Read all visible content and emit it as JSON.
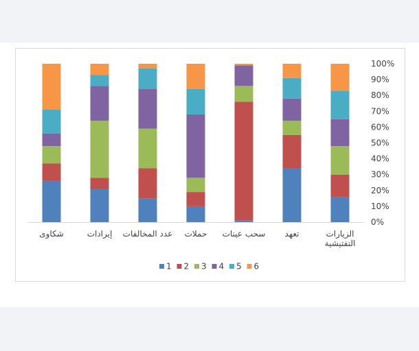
{
  "chart_data": {
    "type": "bar",
    "stacked": true,
    "percent_stacked": true,
    "categories": [
      "شكاوى",
      "إيرادات",
      "عدد المخالفات",
      "حملات",
      "سحب عينات",
      "تعهد",
      "الزيارات التفتيشية"
    ],
    "category_lines": [
      [
        "شكاوى"
      ],
      [
        "إيرادات"
      ],
      [
        "عدد المخالفات"
      ],
      [
        "حملات"
      ],
      [
        "سحب عينات"
      ],
      [
        "تعهد"
      ],
      [
        "الزيارات",
        "التفتيشية"
      ]
    ],
    "series": [
      {
        "name": "1",
        "color": "#4f81bd",
        "values": [
          26,
          21,
          15,
          10,
          1,
          34,
          16
        ]
      },
      {
        "name": "2",
        "color": "#c0504d",
        "values": [
          11,
          7,
          19,
          9,
          75,
          21,
          14
        ]
      },
      {
        "name": "3",
        "color": "#9bbb59",
        "values": [
          11,
          36,
          25,
          9,
          10,
          9,
          18
        ]
      },
      {
        "name": "4",
        "color": "#8064a2",
        "values": [
          8,
          22,
          25,
          40,
          13,
          14,
          17
        ]
      },
      {
        "name": "5",
        "color": "#4bacc6",
        "values": [
          15,
          7,
          13,
          16,
          0,
          13,
          18
        ]
      },
      {
        "name": "6",
        "color": "#f79646",
        "values": [
          29,
          7,
          3,
          16,
          1,
          9,
          17
        ]
      }
    ],
    "y_ticks": [
      "0%",
      "10%",
      "20%",
      "30%",
      "40%",
      "50%",
      "60%",
      "70%",
      "80%",
      "90%",
      "100%"
    ],
    "ylim": [
      0,
      100
    ],
    "y_axis_side": "right",
    "grid": false,
    "legend_position": "bottom",
    "title": "",
    "xlabel": "",
    "ylabel": ""
  }
}
